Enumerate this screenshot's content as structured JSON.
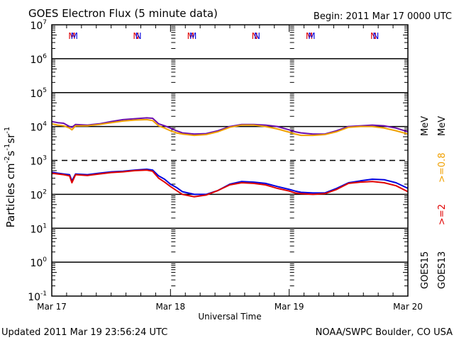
{
  "chart_data": {
    "type": "line",
    "title": "GOES Electron Flux (5 minute data)",
    "begin_label": "Begin: 2011 Mar 17 0000 UTC",
    "xlabel": "Universal Time",
    "ylabel": "Particles cm",
    "ylabel_parts": {
      "main": "Particles cm",
      "sup1": "-2",
      "s": "s",
      "sup2": "-1",
      "sr": "sr",
      "sup3": "-1"
    },
    "yscale": "log",
    "ylim_exp": [
      -1,
      7
    ],
    "y_ticks": [
      {
        "base": "10",
        "exp": "7",
        "value": 7
      },
      {
        "base": "10",
        "exp": "6",
        "value": 6
      },
      {
        "base": "10",
        "exp": "5",
        "value": 5
      },
      {
        "base": "10",
        "exp": "4",
        "value": 4
      },
      {
        "base": "10",
        "exp": "3",
        "value": 3
      },
      {
        "base": "10",
        "exp": "2",
        "value": 2
      },
      {
        "base": "10",
        "exp": "1",
        "value": 1
      },
      {
        "base": "10",
        "exp": "0",
        "value": 0
      },
      {
        "base": "10",
        "exp": "-1",
        "value": -1
      }
    ],
    "x_range_days": [
      0,
      3
    ],
    "x_ticks": [
      {
        "label": "Mar 17",
        "day": 0
      },
      {
        "label": "Mar 18",
        "day": 1
      },
      {
        "label": "Mar 19",
        "day": 2
      },
      {
        "label": "Mar 20",
        "day": 3
      }
    ],
    "threshold_line": {
      "value": 1000,
      "style": "dashed"
    },
    "markers": [
      {
        "text": "M",
        "color": "#e00000",
        "day": 0.17
      },
      {
        "text": "M",
        "color": "#0000e0",
        "day": 0.19
      },
      {
        "text": "N",
        "color": "#e00000",
        "day": 0.71
      },
      {
        "text": "N",
        "color": "#0000e0",
        "day": 0.73
      },
      {
        "text": "M",
        "color": "#e00000",
        "day": 1.17
      },
      {
        "text": "M",
        "color": "#0000e0",
        "day": 1.19
      },
      {
        "text": "N",
        "color": "#e00000",
        "day": 1.71
      },
      {
        "text": "N",
        "color": "#0000e0",
        "day": 1.73
      },
      {
        "text": "M",
        "color": "#e00000",
        "day": 2.17
      },
      {
        "text": "M",
        "color": "#0000e0",
        "day": 2.19
      },
      {
        "text": "N",
        "color": "#e00000",
        "day": 2.71
      },
      {
        "text": "N",
        "color": "#0000e0",
        "day": 2.73
      }
    ],
    "legend": {
      "energy": [
        {
          "label": ">=2",
          "color": "#e00000"
        },
        {
          "label": ">=0.8",
          "color": "#f0a000"
        }
      ],
      "unit": "MeV",
      "satellites": [
        "GOES15",
        "GOES13"
      ]
    },
    "x": [
      0,
      0.05,
      0.1,
      0.15,
      0.17,
      0.2,
      0.3,
      0.4,
      0.5,
      0.6,
      0.7,
      0.8,
      0.85,
      0.9,
      0.95,
      1.0,
      1.05,
      1.1,
      1.2,
      1.3,
      1.4,
      1.5,
      1.6,
      1.7,
      1.8,
      1.9,
      2.0,
      2.05,
      2.1,
      2.2,
      2.3,
      2.4,
      2.5,
      2.6,
      2.7,
      2.8,
      2.9,
      3.0
    ],
    "series": [
      {
        "name": "GOES15 >=0.8 MeV",
        "color": "#6a0dad",
        "values": [
          14000,
          13000,
          12500,
          10000,
          9500,
          11500,
          11000,
          12000,
          14000,
          16000,
          17000,
          18000,
          17500,
          12000,
          10500,
          9000,
          7500,
          6500,
          6000,
          6200,
          7500,
          10000,
          11500,
          11500,
          11000,
          10000,
          8000,
          7000,
          6500,
          6000,
          6000,
          7500,
          10000,
          10500,
          11000,
          10500,
          9000,
          7000
        ]
      },
      {
        "name": "GOES13 >=0.8 MeV",
        "color": "#f0a000",
        "values": [
          12000,
          11000,
          10500,
          9000,
          8000,
          10500,
          10500,
          11500,
          13000,
          14500,
          15500,
          16000,
          15000,
          10500,
          9000,
          7500,
          6500,
          6000,
          5500,
          5800,
          7000,
          9500,
          11000,
          11000,
          10000,
          8500,
          6800,
          6000,
          5500,
          5500,
          5800,
          7000,
          9500,
          10000,
          10000,
          9000,
          7500,
          6000
        ]
      },
      {
        "name": "GOES15 >=2 MeV",
        "color": "#0000e0",
        "values": [
          450,
          420,
          400,
          380,
          250,
          400,
          380,
          420,
          460,
          480,
          520,
          550,
          520,
          350,
          280,
          200,
          160,
          120,
          100,
          100,
          130,
          200,
          240,
          230,
          210,
          170,
          140,
          125,
          115,
          110,
          110,
          150,
          220,
          250,
          280,
          270,
          220,
          150
        ]
      },
      {
        "name": "GOES13 >=2 MeV",
        "color": "#e00000",
        "values": [
          420,
          400,
          380,
          350,
          220,
          380,
          360,
          400,
          440,
          460,
          500,
          520,
          480,
          300,
          230,
          170,
          130,
          100,
          85,
          95,
          130,
          190,
          220,
          210,
          190,
          150,
          125,
          110,
          105,
          100,
          105,
          140,
          210,
          230,
          240,
          220,
          180,
          120
        ]
      }
    ]
  },
  "footer": {
    "updated": "Updated 2011 Mar 19 23:56:24 UTC",
    "source": "NOAA/SWPC Boulder, CO USA"
  }
}
